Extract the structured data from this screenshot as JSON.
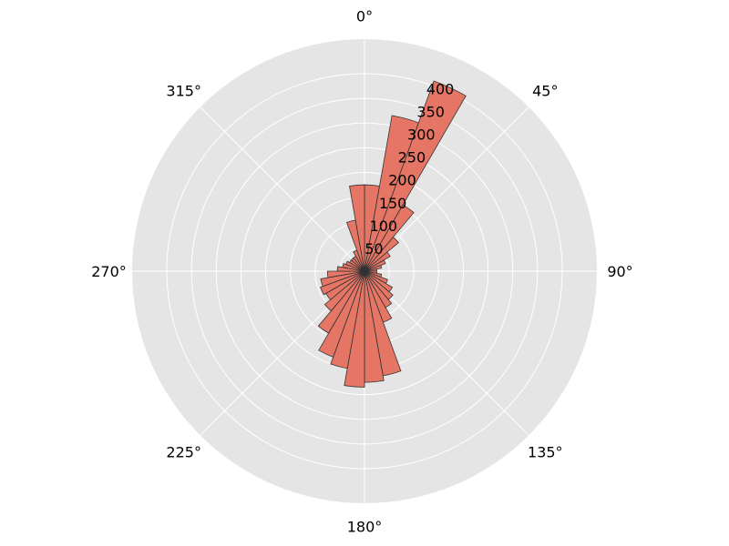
{
  "chart_data": {
    "type": "polar_bar",
    "theta_direction": "clockwise",
    "theta_zero": "top",
    "angle_tick_labels": [
      "0°",
      "45°",
      "90°",
      "135°",
      "180°",
      "225°",
      "270°",
      "315°"
    ],
    "angle_tick_values": [
      0,
      45,
      90,
      135,
      180,
      225,
      270,
      315
    ],
    "radial_tick_labels": [
      "50",
      "100",
      "150",
      "200",
      "250",
      "300",
      "350",
      "400"
    ],
    "radial_tick_values": [
      50,
      100,
      150,
      200,
      250,
      300,
      350,
      400
    ],
    "rlim": [
      0,
      470
    ],
    "bin_width_deg": 10,
    "bin_centers_deg": [
      5,
      15,
      25,
      35,
      45,
      55,
      65,
      75,
      85,
      95,
      105,
      115,
      125,
      135,
      145,
      155,
      165,
      175,
      185,
      195,
      205,
      215,
      225,
      235,
      245,
      255,
      265,
      275,
      285,
      295,
      305,
      315,
      325,
      335,
      345,
      355
    ],
    "values": [
      175,
      320,
      410,
      155,
      90,
      60,
      45,
      35,
      25,
      25,
      35,
      50,
      65,
      75,
      85,
      110,
      215,
      225,
      235,
      200,
      185,
      145,
      105,
      90,
      95,
      90,
      75,
      55,
      45,
      40,
      35,
      35,
      35,
      45,
      105,
      175
    ],
    "grid": true,
    "colors": {
      "bar_fill": "#E5705E",
      "bar_edge": "#333333",
      "background": "#E5E5E5",
      "grid": "#FFFFFF"
    }
  }
}
